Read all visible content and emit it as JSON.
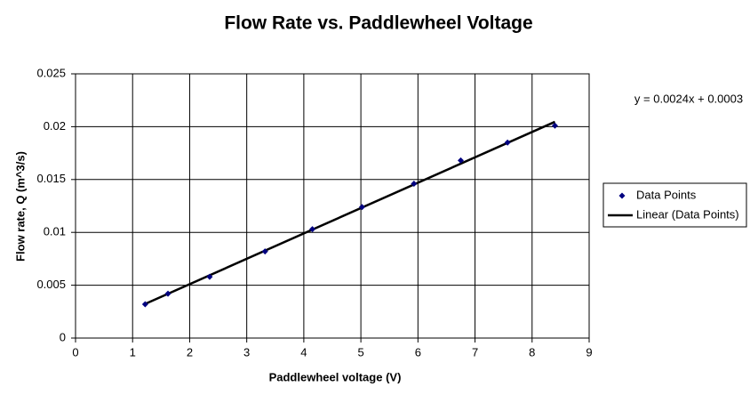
{
  "chart_data": {
    "type": "scatter",
    "title": "Flow Rate vs. Paddlewheel Voltage",
    "x_label": "Paddlewheel voltage (V)",
    "y_label": "Flow rate, Q (m^3/s)",
    "series": [
      {
        "name": "Data Points",
        "color": "#000080",
        "x": [
          1.22,
          1.62,
          2.35,
          3.32,
          4.15,
          5.02,
          5.93,
          6.75,
          7.57,
          8.4
        ],
        "values": [
          0.0032,
          0.0042,
          0.0058,
          0.0082,
          0.0103,
          0.0124,
          0.0146,
          0.0168,
          0.0185,
          0.0201
        ]
      }
    ],
    "trendline": {
      "name": "Linear (Data Points)",
      "color": "#000000",
      "slope": 0.0024,
      "intercept": 0.0003,
      "equation": "y = 0.0024x + 0.0003"
    },
    "xlim": [
      0,
      9
    ],
    "xticks": [
      0,
      1,
      2,
      3,
      4,
      5,
      6,
      7,
      8,
      9
    ],
    "ylim": [
      0,
      0.025
    ],
    "yticks": [
      0,
      0.005,
      0.01,
      0.015,
      0.02,
      0.025
    ],
    "grid": true,
    "legend": "right"
  }
}
